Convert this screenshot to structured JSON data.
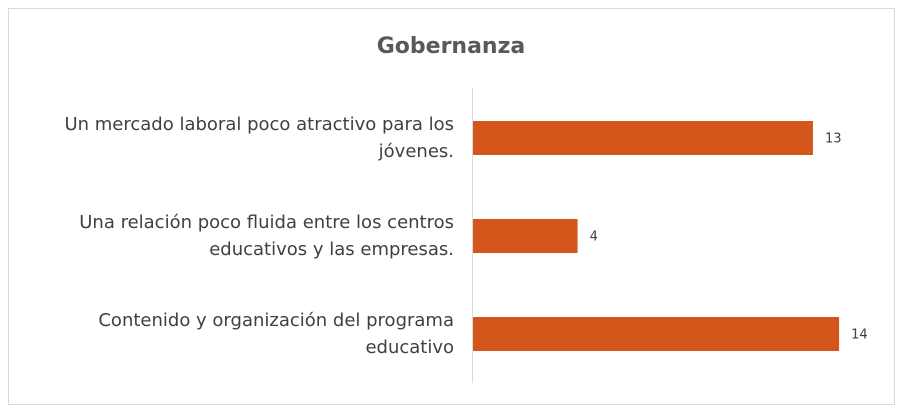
{
  "chart_data": {
    "type": "bar",
    "orientation": "horizontal",
    "title": "Gobernanza",
    "categories": [
      "Un mercado laboral poco atractivo para los jóvenes.",
      "Una relación poco fluida entre los centros educativos y las empresas.",
      "Contenido y organización del programa educativo"
    ],
    "values": [
      13,
      4,
      14
    ],
    "color": "#d4561a"
  }
}
